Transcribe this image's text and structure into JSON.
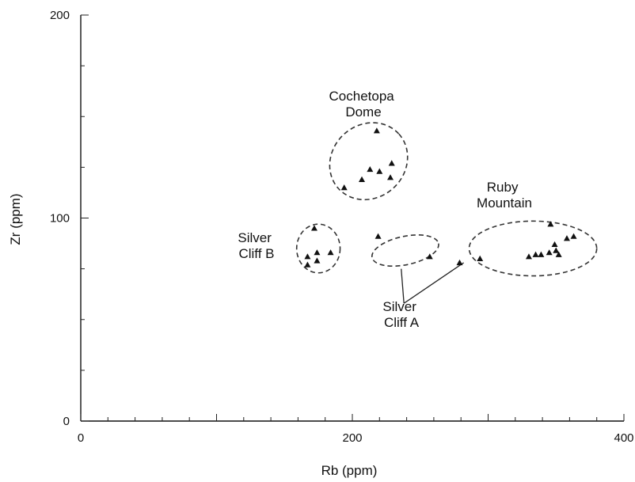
{
  "chart_data": {
    "type": "scatter",
    "title": "",
    "xlabel": "Rb (ppm)",
    "ylabel": "Zr (ppm)",
    "xlim": [
      0,
      400
    ],
    "ylim": [
      0,
      200
    ],
    "x_tick_labels": [
      "0",
      "200",
      "400"
    ],
    "y_tick_labels": [
      "0",
      "100",
      "200"
    ],
    "grid": false,
    "marker": "triangle",
    "points": [
      {
        "x": 218,
        "y": 143
      },
      {
        "x": 229,
        "y": 127
      },
      {
        "x": 213,
        "y": 124
      },
      {
        "x": 220,
        "y": 123
      },
      {
        "x": 228,
        "y": 120
      },
      {
        "x": 207,
        "y": 119
      },
      {
        "x": 194,
        "y": 115
      },
      {
        "x": 172,
        "y": 95
      },
      {
        "x": 167,
        "y": 81
      },
      {
        "x": 174,
        "y": 83
      },
      {
        "x": 184,
        "y": 83
      },
      {
        "x": 174,
        "y": 79
      },
      {
        "x": 167,
        "y": 77
      },
      {
        "x": 219,
        "y": 91
      },
      {
        "x": 257,
        "y": 81
      },
      {
        "x": 279,
        "y": 78
      },
      {
        "x": 294,
        "y": 80
      },
      {
        "x": 346,
        "y": 97
      },
      {
        "x": 358,
        "y": 90
      },
      {
        "x": 363,
        "y": 91
      },
      {
        "x": 349,
        "y": 87
      },
      {
        "x": 330,
        "y": 81
      },
      {
        "x": 335,
        "y": 82
      },
      {
        "x": 339,
        "y": 82
      },
      {
        "x": 345,
        "y": 83
      },
      {
        "x": 350,
        "y": 84
      },
      {
        "x": 352,
        "y": 82
      }
    ],
    "groups": [
      {
        "label": [
          "Cochetopa",
          "Dome"
        ]
      },
      {
        "label": [
          "Silver",
          "Cliff B"
        ]
      },
      {
        "label": [
          "Ruby",
          "Mountain"
        ]
      },
      {
        "label": [
          "Silver",
          "Cliff A"
        ]
      }
    ]
  }
}
